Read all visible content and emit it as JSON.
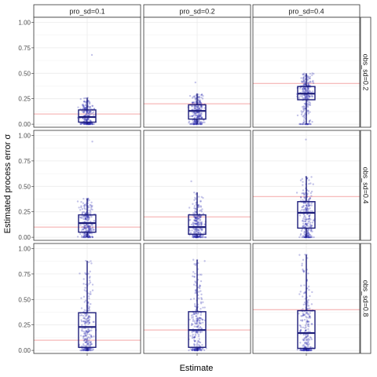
{
  "chart_data": {
    "type": "box+jitter",
    "xlabel": "Estimate",
    "ylabel": "Estimated process error σ",
    "x_tick_labels": [
      ""
    ],
    "y_ticks": [
      0.0,
      0.25,
      0.5,
      0.75,
      1.0
    ],
    "y_tick_labels": [
      "0.00",
      "0.25",
      "0.50",
      "0.75",
      "1.00"
    ],
    "ylim": [
      -0.03,
      1.05
    ],
    "grid": true,
    "columns": [
      "pro_sd=0.1",
      "pro_sd=0.2",
      "pro_sd=0.4"
    ],
    "rows": [
      "obs_sd=0.2",
      "obs_sd=0.4",
      "obs_sd=0.8"
    ],
    "colors": {
      "points": "#2b2bb0",
      "box": "#1c1c7a",
      "reference_line": "#f4a6a6",
      "strip_fill": "#ffffff",
      "panel_border": "#333333",
      "grid": "#ebebeb"
    },
    "panels": [
      {
        "row": "obs_sd=0.2",
        "col": "pro_sd=0.1",
        "true_value": 0.1,
        "box": {
          "min": 0.0,
          "q1": 0.02,
          "median": 0.07,
          "q3": 0.14,
          "max": 0.26
        },
        "max_point": 0.68
      },
      {
        "row": "obs_sd=0.2",
        "col": "pro_sd=0.2",
        "true_value": 0.2,
        "box": {
          "min": 0.0,
          "q1": 0.05,
          "median": 0.13,
          "q3": 0.19,
          "max": 0.3
        },
        "max_point": 0.41
      },
      {
        "row": "obs_sd=0.2",
        "col": "pro_sd=0.4",
        "true_value": 0.4,
        "box": {
          "min": 0.0,
          "q1": 0.24,
          "median": 0.3,
          "q3": 0.37,
          "max": 0.5
        },
        "max_point": 0.5
      },
      {
        "row": "obs_sd=0.4",
        "col": "pro_sd=0.1",
        "true_value": 0.1,
        "box": {
          "min": 0.0,
          "q1": 0.05,
          "median": 0.14,
          "q3": 0.22,
          "max": 0.38
        },
        "max_point": 0.94
      },
      {
        "row": "obs_sd=0.4",
        "col": "pro_sd=0.2",
        "true_value": 0.2,
        "box": {
          "min": 0.0,
          "q1": 0.03,
          "median": 0.1,
          "q3": 0.22,
          "max": 0.44
        },
        "max_point": 0.55
      },
      {
        "row": "obs_sd=0.4",
        "col": "pro_sd=0.4",
        "true_value": 0.4,
        "box": {
          "min": 0.0,
          "q1": 0.09,
          "median": 0.24,
          "q3": 0.35,
          "max": 0.6
        },
        "max_point": 0.96
      },
      {
        "row": "obs_sd=0.8",
        "col": "pro_sd=0.1",
        "true_value": 0.1,
        "box": {
          "min": 0.0,
          "q1": 0.03,
          "median": 0.23,
          "q3": 0.37,
          "max": 0.88
        },
        "max_point": 0.88
      },
      {
        "row": "obs_sd=0.8",
        "col": "pro_sd=0.2",
        "true_value": 0.2,
        "box": {
          "min": 0.0,
          "q1": 0.03,
          "median": 0.2,
          "q3": 0.38,
          "max": 0.89
        },
        "max_point": 0.89
      },
      {
        "row": "obs_sd=0.8",
        "col": "pro_sd=0.4",
        "true_value": 0.4,
        "box": {
          "min": 0.0,
          "q1": 0.02,
          "median": 0.17,
          "q3": 0.39,
          "max": 0.94
        },
        "max_point": 0.94
      }
    ]
  }
}
